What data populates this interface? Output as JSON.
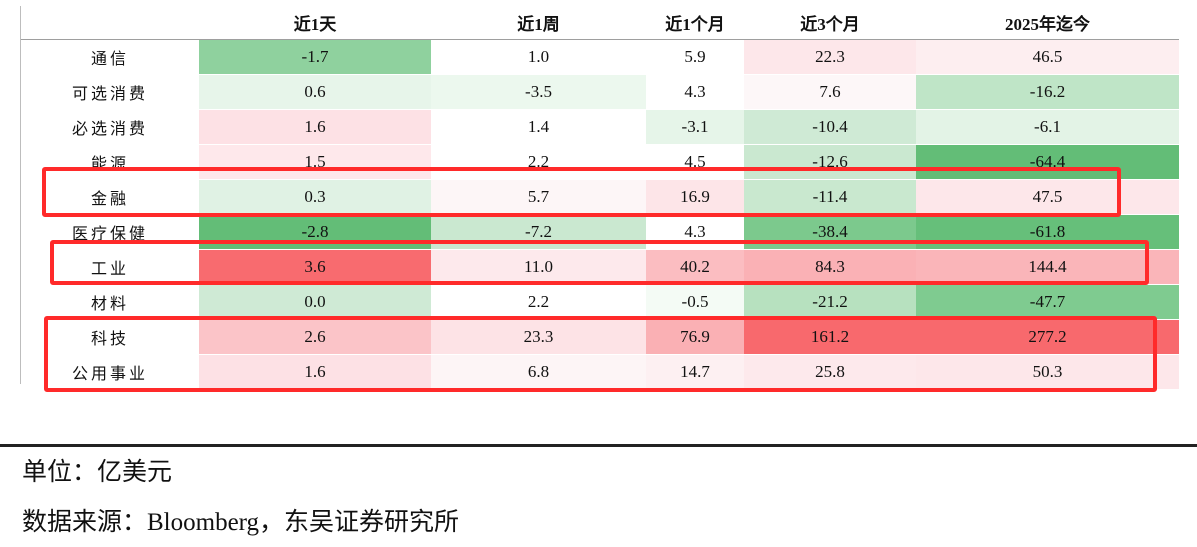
{
  "table": {
    "columns": [
      "",
      "近1天",
      "近1周",
      "近1个月",
      "近3个月",
      "2025年迄今"
    ],
    "rows": [
      {
        "label": "通信",
        "values": [
          "-1.7",
          "1.0",
          "5.9",
          "22.3",
          "46.5"
        ],
        "colors": [
          "#8fd19e",
          "#ffffff",
          "#ffffff",
          "#fde7ea",
          "#fdeef0"
        ]
      },
      {
        "label": "可选消费",
        "values": [
          "0.6",
          "-3.5",
          "4.3",
          "7.6",
          "-16.2"
        ],
        "colors": [
          "#e7f5ea",
          "#ecf8ee",
          "#ffffff",
          "#fdf7f8",
          "#bfe5c7"
        ]
      },
      {
        "label": "必选消费",
        "values": [
          "1.6",
          "1.4",
          "-3.1",
          "-10.4",
          "-6.1"
        ],
        "colors": [
          "#fde1e5",
          "#ffffff",
          "#e6f5e9",
          "#cfead5",
          "#e3f3e6"
        ]
      },
      {
        "label": "能源",
        "values": [
          "1.5",
          "2.2",
          "4.5",
          "-12.6",
          "-64.4"
        ],
        "colors": [
          "#fee8eb",
          "#ffffff",
          "#ffffff",
          "#cae8d0",
          "#63bd77"
        ]
      },
      {
        "label": "金融",
        "values": [
          "0.3",
          "5.7",
          "16.9",
          "-11.4",
          "47.5"
        ],
        "colors": [
          "#e0f2e4",
          "#fdf6f7",
          "#fde5e8",
          "#c9e8cf",
          "#fde7ea"
        ]
      },
      {
        "label": "医疗保健",
        "values": [
          "-2.8",
          "-7.2",
          "4.3",
          "-38.4",
          "-61.8"
        ],
        "colors": [
          "#63bd77",
          "#cae8d0",
          "#ffffff",
          "#7cc98d",
          "#66bf7a"
        ]
      },
      {
        "label": "工业",
        "values": [
          "3.6",
          "11.0",
          "40.2",
          "84.3",
          "144.4"
        ],
        "colors": [
          "#f86b6f",
          "#fde9ec",
          "#fbbdc1",
          "#fab1b5",
          "#fab5b9"
        ]
      },
      {
        "label": "材料",
        "values": [
          "0.0",
          "2.2",
          "-0.5",
          "-21.2",
          "-47.7"
        ],
        "colors": [
          "#cfead5",
          "#ffffff",
          "#f4fbf5",
          "#b7e1bf",
          "#7fcb90"
        ]
      },
      {
        "label": "科技",
        "values": [
          "2.6",
          "23.3",
          "76.9",
          "161.2",
          "277.2"
        ],
        "colors": [
          "#fbc4c8",
          "#fde3e6",
          "#fab0b4",
          "#f8696d",
          "#f8696d"
        ]
      },
      {
        "label": "公用事业",
        "values": [
          "1.6",
          "6.8",
          "14.7",
          "25.8",
          "50.3"
        ],
        "colors": [
          "#fde1e5",
          "#fdf5f6",
          "#fdf0f2",
          "#fde9ec",
          "#fde7ea"
        ]
      }
    ]
  },
  "notes": {
    "unit": "单位：亿美元",
    "source": "数据来源：Bloomberg，东吴证券研究所"
  },
  "highlight_color": "#ff2a2a",
  "highlighted_rows": [
    "金融",
    "工业",
    "科技",
    "公用事业"
  ]
}
